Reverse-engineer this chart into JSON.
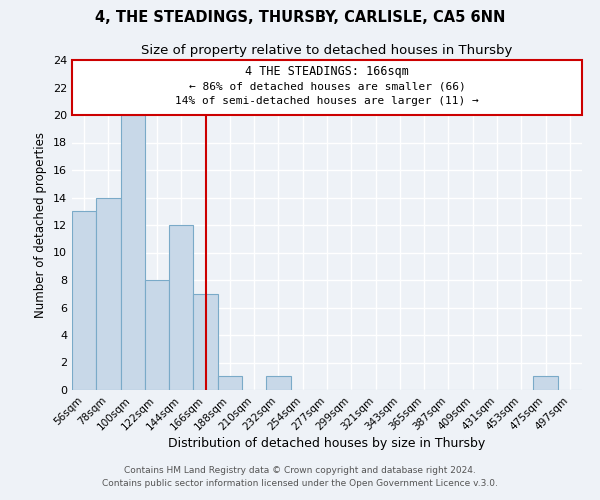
{
  "title1": "4, THE STEADINGS, THURSBY, CARLISLE, CA5 6NN",
  "title2": "Size of property relative to detached houses in Thursby",
  "xlabel": "Distribution of detached houses by size in Thursby",
  "ylabel": "Number of detached properties",
  "bin_labels": [
    "56sqm",
    "78sqm",
    "100sqm",
    "122sqm",
    "144sqm",
    "166sqm",
    "188sqm",
    "210sqm",
    "232sqm",
    "254sqm",
    "277sqm",
    "299sqm",
    "321sqm",
    "343sqm",
    "365sqm",
    "387sqm",
    "409sqm",
    "431sqm",
    "453sqm",
    "475sqm",
    "497sqm"
  ],
  "bin_values": [
    13,
    14,
    20,
    8,
    12,
    7,
    1,
    0,
    1,
    0,
    0,
    0,
    0,
    0,
    0,
    0,
    0,
    0,
    0,
    1,
    0
  ],
  "bar_color": "#c8d8e8",
  "bar_edge_color": "#7aaac8",
  "red_line_index": 5,
  "annotation_title": "4 THE STEADINGS: 166sqm",
  "annotation_line1": "← 86% of detached houses are smaller (66)",
  "annotation_line2": "14% of semi-detached houses are larger (11) →",
  "annotation_box_color": "#ffffff",
  "annotation_box_edge": "#cc0000",
  "ylim": [
    0,
    24
  ],
  "yticks": [
    0,
    2,
    4,
    6,
    8,
    10,
    12,
    14,
    16,
    18,
    20,
    22,
    24
  ],
  "footer1": "Contains HM Land Registry data © Crown copyright and database right 2024.",
  "footer2": "Contains public sector information licensed under the Open Government Licence v.3.0.",
  "background_color": "#eef2f7",
  "grid_color": "#ffffff",
  "title1_fontsize": 10.5,
  "title2_fontsize": 9.5
}
